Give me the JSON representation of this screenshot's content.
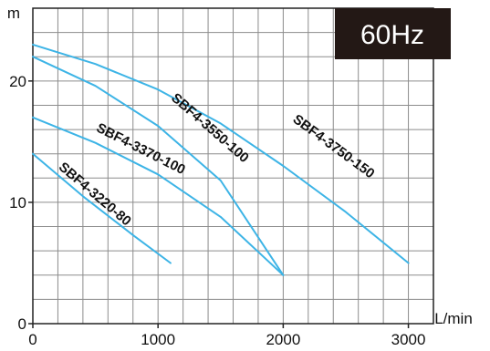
{
  "chart_data": {
    "type": "line",
    "title": "",
    "xlabel": "",
    "ylabel": "",
    "badge": "60Hz",
    "x_unit": "L/min",
    "y_unit": "m",
    "xlim": [
      0,
      3200
    ],
    "ylim": [
      0,
      26
    ],
    "x_ticks": [
      0,
      1000,
      2000,
      3000
    ],
    "x_tick_labels": [
      "0",
      "1000",
      "2000",
      "3000"
    ],
    "y_ticks": [
      0,
      10,
      20
    ],
    "y_tick_labels": [
      "0",
      "10",
      "20"
    ],
    "grid": true,
    "line_color": "#3db4e6",
    "series": [
      {
        "name": "SBF4-3220-80",
        "x": [
          0,
          400,
          800,
          1100
        ],
        "y": [
          14,
          10.5,
          7.3,
          5
        ],
        "label_at": [
          200,
          12.8
        ]
      },
      {
        "name": "SBF4-3370-100",
        "x": [
          0,
          500,
          1000,
          1500,
          2000
        ],
        "y": [
          17,
          14.9,
          12.3,
          8.8,
          4
        ],
        "label_at": [
          500,
          15.9
        ]
      },
      {
        "name": "SBF4-3550-100",
        "x": [
          0,
          500,
          1000,
          1500,
          2000
        ],
        "y": [
          22,
          19.6,
          16.3,
          11.8,
          4
        ],
        "label_at": [
          1100,
          18.5
        ]
      },
      {
        "name": "SBF4-3750-150",
        "x": [
          0,
          500,
          1000,
          1500,
          2000,
          2500,
          3000
        ],
        "y": [
          23,
          21.4,
          19.3,
          16.5,
          13,
          9.2,
          5
        ],
        "label_at": [
          2070,
          16.7
        ]
      }
    ]
  }
}
